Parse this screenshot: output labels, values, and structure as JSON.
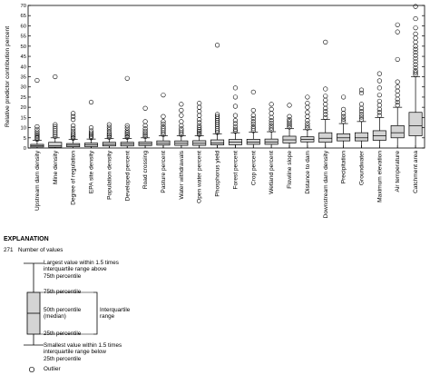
{
  "chart_data": {
    "type": "box",
    "ylabel": "Relative predictor contribution percent",
    "ylim": [
      0,
      70
    ],
    "yticks": [
      0,
      5,
      10,
      15,
      20,
      25,
      30,
      35,
      40,
      45,
      50,
      55,
      60,
      65,
      70
    ],
    "grid": false,
    "categories": [
      "Upstream dam density",
      "Mine density",
      "Degree of regulation",
      "EPA site density",
      "Population density",
      "Developed percent",
      "Road crossing",
      "Pasture percent",
      "Water withdrawals",
      "Open water percent",
      "Phosphorus yield",
      "Forest percent",
      "Crop percent",
      "Wetland percent",
      "Flowline slope",
      "Distance to dam",
      "Downstream dam density",
      "Precipitation",
      "Groundwater",
      "Maximum elevation",
      "Air temperature",
      "Catchment area"
    ],
    "boxes": [
      {
        "low": 0.0,
        "q1": 0.5,
        "median": 1.2,
        "q3": 1.8,
        "high": 3.8,
        "outliers": [
          4.3,
          5.0,
          5.6,
          6.3,
          7.0,
          8.0,
          9.2,
          10.5,
          33.2
        ]
      },
      {
        "low": 0.0,
        "q1": 0.4,
        "median": 1.2,
        "q3": 2.8,
        "high": 5.0,
        "outliers": [
          5.6,
          6.5,
          7.5,
          8.5,
          9.5,
          10.5,
          11.5,
          35.0
        ]
      },
      {
        "low": 0.0,
        "q1": 0.6,
        "median": 1.4,
        "q3": 2.2,
        "high": 4.2,
        "outliers": [
          4.8,
          5.5,
          6.3,
          7.2,
          8.3,
          9.5,
          11.0,
          14.0,
          15.5,
          17.0
        ]
      },
      {
        "low": 0.0,
        "q1": 0.7,
        "median": 1.5,
        "q3": 2.4,
        "high": 4.4,
        "outliers": [
          5.0,
          5.8,
          6.6,
          7.5,
          8.5,
          10.0,
          22.5
        ]
      },
      {
        "low": 0.0,
        "q1": 1.0,
        "median": 1.8,
        "q3": 2.8,
        "high": 4.6,
        "outliers": [
          5.2,
          6.0,
          6.8,
          7.8,
          9.0,
          10.2,
          11.5
        ]
      },
      {
        "low": 0.0,
        "q1": 1.0,
        "median": 1.9,
        "q3": 2.8,
        "high": 4.7,
        "outliers": [
          5.3,
          6.0,
          6.8,
          7.6,
          8.5,
          9.8,
          11.0,
          34.2
        ]
      },
      {
        "low": 0.0,
        "q1": 1.2,
        "median": 2.0,
        "q3": 3.0,
        "high": 5.0,
        "outliers": [
          5.6,
          6.4,
          7.3,
          8.3,
          9.5,
          11.0,
          13.0,
          19.5
        ]
      },
      {
        "low": 0.0,
        "q1": 1.4,
        "median": 2.3,
        "q3": 3.5,
        "high": 6.0,
        "outliers": [
          6.6,
          7.5,
          8.5,
          9.5,
          10.5,
          11.8,
          13.0,
          15.5,
          26.0
        ]
      },
      {
        "low": 0.0,
        "q1": 1.3,
        "median": 2.3,
        "q3": 3.5,
        "high": 6.0,
        "outliers": [
          6.6,
          7.5,
          8.5,
          9.5,
          11.0,
          13.0,
          16.0,
          18.5,
          21.5
        ]
      },
      {
        "low": 0.0,
        "q1": 1.3,
        "median": 2.3,
        "q3": 3.6,
        "high": 6.0,
        "outliers": [
          6.6,
          7.4,
          8.2,
          9.0,
          10.0,
          11.0,
          12.5,
          14.0,
          16.0,
          18.0,
          20.0,
          22.0
        ]
      },
      {
        "low": 0.0,
        "q1": 1.5,
        "median": 2.5,
        "q3": 4.0,
        "high": 7.0,
        "outliers": [
          7.6,
          8.5,
          9.5,
          10.5,
          11.5,
          12.5,
          13.5,
          14.5,
          15.5,
          16.5,
          50.5
        ]
      },
      {
        "low": 0.0,
        "q1": 1.6,
        "median": 2.8,
        "q3": 4.2,
        "high": 7.5,
        "outliers": [
          8.2,
          9.2,
          10.5,
          12.0,
          13.5,
          16.0,
          20.5,
          25.0,
          29.5
        ]
      },
      {
        "low": 0.0,
        "q1": 1.8,
        "median": 2.9,
        "q3": 4.3,
        "high": 7.8,
        "outliers": [
          8.5,
          9.5,
          10.5,
          11.8,
          13.0,
          14.5,
          16.0,
          18.5,
          27.5
        ]
      },
      {
        "low": 0.0,
        "q1": 1.8,
        "median": 3.0,
        "q3": 4.4,
        "high": 8.0,
        "outliers": [
          8.8,
          9.8,
          11.0,
          12.2,
          13.5,
          15.0,
          17.0,
          19.0,
          21.5
        ]
      },
      {
        "low": 0.0,
        "q1": 2.5,
        "median": 4.0,
        "q3": 5.8,
        "high": 9.5,
        "outliers": [
          10.3,
          11.2,
          12.0,
          13.0,
          14.0,
          15.5,
          21.0
        ]
      },
      {
        "low": 0.0,
        "q1": 3.0,
        "median": 4.2,
        "q3": 5.5,
        "high": 9.0,
        "outliers": [
          9.8,
          10.8,
          12.0,
          13.5,
          15.5,
          17.5,
          20.0,
          22.0,
          25.0
        ]
      },
      {
        "low": 0.0,
        "q1": 2.8,
        "median": 4.8,
        "q3": 7.5,
        "high": 14.0,
        "outliers": [
          15.0,
          16.5,
          18.0,
          19.5,
          21.5,
          23.5,
          25.5,
          29.0,
          52.0
        ]
      },
      {
        "low": 0.0,
        "q1": 3.5,
        "median": 5.0,
        "q3": 7.0,
        "high": 12.0,
        "outliers": [
          13.0,
          14.2,
          15.5,
          17.0,
          19.0,
          25.0
        ]
      },
      {
        "low": 0.0,
        "q1": 3.5,
        "median": 5.0,
        "q3": 7.5,
        "high": 13.0,
        "outliers": [
          14.0,
          15.2,
          16.5,
          18.0,
          19.5,
          21.5,
          27.0,
          28.5
        ]
      },
      {
        "low": 0.0,
        "q1": 3.8,
        "median": 6.0,
        "q3": 8.5,
        "high": 15.0,
        "outliers": [
          16.0,
          17.5,
          19.0,
          21.0,
          23.0,
          26.0,
          29.5,
          33.0,
          36.5
        ]
      },
      {
        "low": 0.0,
        "q1": 5.0,
        "median": 7.5,
        "q3": 11.0,
        "high": 20.0,
        "outliers": [
          21.0,
          22.5,
          24.0,
          26.0,
          28.0,
          30.0,
          32.5,
          43.5,
          57.0,
          60.5
        ]
      },
      {
        "low": 0.0,
        "q1": 6.0,
        "median": 11.0,
        "q3": 17.5,
        "high": 35.0,
        "outliers": [
          36.0,
          37.0,
          38.0,
          39.5,
          41.0,
          42.5,
          44.0,
          45.5,
          47.0,
          48.5,
          50.0,
          52.0,
          54.0,
          56.0,
          59.0,
          63.5,
          69.5
        ]
      }
    ]
  },
  "explanation": {
    "title": "EXPLANATION",
    "count_value": "271",
    "count_label": "Number of values",
    "upper_whisker": "Largest value within 1.5 times\ninterquartile range above\n75th percentile",
    "q3": "75th percentile",
    "median": "50th percentile\n(median)",
    "q1": "25th percentile",
    "iqr": "Interquartile\nrange",
    "lower_whisker": "Smallest value within 1.5 times\ninterquartile range below\n25th percentile",
    "outlier": "Outlier"
  },
  "colors": {
    "box_fill": "#d4d4d4",
    "stroke": "#000000"
  }
}
